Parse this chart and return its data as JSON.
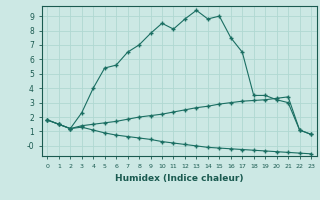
{
  "xlabel": "Humidex (Indice chaleur)",
  "bg_color": "#cce8e4",
  "line_color": "#1a6e62",
  "grid_color": "#b0d8d2",
  "xlim": [
    -0.5,
    23.5
  ],
  "ylim": [
    -0.7,
    9.7
  ],
  "xticks": [
    0,
    1,
    2,
    3,
    4,
    5,
    6,
    7,
    8,
    9,
    10,
    11,
    12,
    13,
    14,
    15,
    16,
    17,
    18,
    19,
    20,
    21,
    22,
    23
  ],
  "yticks": [
    0,
    1,
    2,
    3,
    4,
    5,
    6,
    7,
    8,
    9
  ],
  "ytick_labels": [
    "-0",
    "1",
    "2",
    "3",
    "4",
    "5",
    "6",
    "7",
    "8",
    "9"
  ],
  "line1_x": [
    0,
    1,
    2,
    3,
    4,
    5,
    6,
    7,
    8,
    9,
    10,
    11,
    12,
    13,
    14,
    15,
    16,
    17,
    18,
    19,
    20,
    21,
    22,
    23
  ],
  "line1_y": [
    1.8,
    1.5,
    1.2,
    2.3,
    4.0,
    5.4,
    5.6,
    6.5,
    7.0,
    7.8,
    8.5,
    8.1,
    8.8,
    9.4,
    8.8,
    9.0,
    7.5,
    6.5,
    3.5,
    3.5,
    3.2,
    3.0,
    1.1,
    0.8
  ],
  "line2_x": [
    0,
    1,
    2,
    3,
    4,
    5,
    6,
    7,
    8,
    9,
    10,
    11,
    12,
    13,
    14,
    15,
    16,
    17,
    18,
    19,
    20,
    21,
    22,
    23
  ],
  "line2_y": [
    1.8,
    1.5,
    1.2,
    1.4,
    1.5,
    1.6,
    1.7,
    1.85,
    2.0,
    2.1,
    2.2,
    2.35,
    2.5,
    2.65,
    2.75,
    2.9,
    3.0,
    3.1,
    3.15,
    3.2,
    3.3,
    3.4,
    1.1,
    0.8
  ],
  "line3_x": [
    0,
    1,
    2,
    3,
    4,
    5,
    6,
    7,
    8,
    9,
    10,
    11,
    12,
    13,
    14,
    15,
    16,
    17,
    18,
    19,
    20,
    21,
    22,
    23
  ],
  "line3_y": [
    1.8,
    1.5,
    1.2,
    1.3,
    1.1,
    0.9,
    0.75,
    0.65,
    0.55,
    0.45,
    0.3,
    0.2,
    0.1,
    0.0,
    -0.1,
    -0.15,
    -0.2,
    -0.25,
    -0.3,
    -0.35,
    -0.4,
    -0.45,
    -0.5,
    -0.55
  ]
}
